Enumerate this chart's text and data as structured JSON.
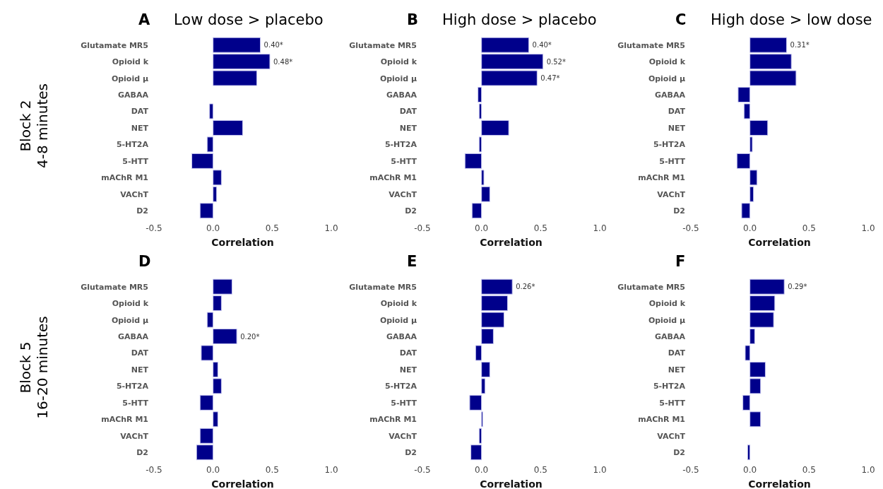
{
  "chart_data": [
    {
      "type": "bar",
      "orientation": "horizontal",
      "title": "A",
      "subtitle": "Low dose > placebo",
      "ylabel": "Block 2\n4-8 minutes",
      "xlabel": "Correlation",
      "categories": [
        "Glutamate MR5",
        "Opioid k",
        "Opioid μ",
        "GABAA",
        "DAT",
        "NET",
        "5-HT2A",
        "5-HTT",
        "mAChR M1",
        "VAChT",
        "D2"
      ],
      "values": [
        0.4,
        0.48,
        0.37,
        0,
        -0.03,
        0.25,
        -0.05,
        -0.18,
        0.07,
        0.03,
        -0.11
      ],
      "value_labels": [
        "0.40*",
        "0.48*",
        null,
        null,
        null,
        null,
        null,
        null,
        null,
        null,
        null
      ],
      "color": "#00008b",
      "xlim": [
        -0.5,
        1.0
      ],
      "xticks": [
        {
          "value": -0.5,
          "label": "-0.5"
        },
        {
          "value": 0,
          "label": "0.0"
        },
        {
          "value": 0.5,
          "label": "0.5"
        },
        {
          "value": 1,
          "label": "1.0"
        }
      ]
    },
    {
      "type": "bar",
      "orientation": "horizontal",
      "title": "B",
      "subtitle": "High dose > placebo",
      "xlabel": "Correlation",
      "categories": [
        "Glutamate MR5",
        "Opioid k",
        "Opioid μ",
        "GABAA",
        "DAT",
        "NET",
        "5-HT2A",
        "5-HTT",
        "mAChR M1",
        "VAChT",
        "D2"
      ],
      "values": [
        0.4,
        0.52,
        0.47,
        -0.03,
        -0.02,
        0.23,
        -0.02,
        -0.14,
        0.02,
        0.07,
        -0.08
      ],
      "value_labels": [
        "0.40*",
        "0.52*",
        "0.47*",
        null,
        null,
        null,
        null,
        null,
        null,
        null,
        null
      ],
      "color": "#00008b",
      "xlim": [
        -0.5,
        1.0
      ],
      "xticks": [
        {
          "value": -0.5,
          "label": "-0.5"
        },
        {
          "value": 0,
          "label": "0.0"
        },
        {
          "value": 0.5,
          "label": "0.5"
        },
        {
          "value": 1,
          "label": "1.0"
        }
      ]
    },
    {
      "type": "bar",
      "orientation": "horizontal",
      "title": "C",
      "subtitle": "High dose > low dose",
      "xlabel": "Correlation",
      "categories": [
        "Glutamate MR5",
        "Opioid k",
        "Opioid μ",
        "GABAA",
        "DAT",
        "NET",
        "5-HT2A",
        "5-HTT",
        "mAChR M1",
        "VAChT",
        "D2"
      ],
      "values": [
        0.31,
        0.35,
        0.39,
        -0.1,
        -0.05,
        0.15,
        0.02,
        -0.11,
        0.06,
        0.03,
        -0.07
      ],
      "value_labels": [
        "0.31*",
        null,
        null,
        null,
        null,
        null,
        null,
        null,
        null,
        null,
        null
      ],
      "color": "#00008b",
      "xlim": [
        -0.5,
        1.0
      ],
      "xticks": [
        {
          "value": -0.5,
          "label": "-0.5"
        },
        {
          "value": 0,
          "label": "0.0"
        },
        {
          "value": 0.5,
          "label": "0.5"
        },
        {
          "value": 1,
          "label": "1.0"
        }
      ]
    },
    {
      "type": "bar",
      "orientation": "horizontal",
      "title": "D",
      "ylabel": "Block 5\n16-20 minutes",
      "xlabel": "Correlation",
      "categories": [
        "Glutamate MR5",
        "Opioid k",
        "Opioid μ",
        "GABAA",
        "DAT",
        "NET",
        "5-HT2A",
        "5-HTT",
        "mAChR M1",
        "VAChT",
        "D2"
      ],
      "values": [
        0.16,
        0.07,
        -0.05,
        0.2,
        -0.1,
        0.04,
        0.07,
        -0.11,
        0.04,
        -0.11,
        -0.14
      ],
      "value_labels": [
        null,
        null,
        null,
        "0.20*",
        null,
        null,
        null,
        null,
        null,
        null,
        null
      ],
      "color": "#00008b",
      "xlim": [
        -0.5,
        1.0
      ],
      "xticks": [
        {
          "value": -0.5,
          "label": "-0.5"
        },
        {
          "value": 0,
          "label": "0.0"
        },
        {
          "value": 0.5,
          "label": "0.5"
        },
        {
          "value": 1,
          "label": "1.0"
        }
      ]
    },
    {
      "type": "bar",
      "orientation": "horizontal",
      "title": "E",
      "xlabel": "Correlation",
      "categories": [
        "Glutamate MR5",
        "Opioid k",
        "Opioid μ",
        "GABAA",
        "DAT",
        "NET",
        "5-HT2A",
        "5-HTT",
        "mAChR M1",
        "VAChT",
        "D2"
      ],
      "values": [
        0.26,
        0.22,
        0.19,
        0.1,
        -0.05,
        0.07,
        0.03,
        -0.1,
        0.01,
        -0.02,
        -0.09
      ],
      "value_labels": [
        "0.26*",
        null,
        null,
        null,
        null,
        null,
        null,
        null,
        null,
        null,
        null
      ],
      "color": "#00008b",
      "xlim": [
        -0.5,
        1.0
      ],
      "xticks": [
        {
          "value": -0.5,
          "label": "-0.5"
        },
        {
          "value": 0,
          "label": "0.0"
        },
        {
          "value": 0.5,
          "label": "0.5"
        },
        {
          "value": 1,
          "label": "1.0"
        }
      ]
    },
    {
      "type": "bar",
      "orientation": "horizontal",
      "title": "F",
      "xlabel": "Correlation",
      "categories": [
        "Glutamate MR5",
        "Opioid k",
        "Opioid μ",
        "GABAA",
        "DAT",
        "NET",
        "5-HT2A",
        "5-HTT",
        "mAChR M1",
        "VAChT",
        "D2"
      ],
      "values": [
        0.29,
        0.21,
        0.2,
        0.04,
        -0.04,
        0.13,
        0.09,
        -0.06,
        0.09,
        0,
        -0.02
      ],
      "value_labels": [
        "0.29*",
        null,
        null,
        null,
        null,
        null,
        null,
        null,
        null,
        null,
        null
      ],
      "color": "#00008b",
      "xlim": [
        -0.5,
        1.0
      ],
      "xticks": [
        {
          "value": -0.5,
          "label": "-0.5"
        },
        {
          "value": 0,
          "label": "0.0"
        },
        {
          "value": 0.5,
          "label": "0.5"
        },
        {
          "value": 1,
          "label": "1.0"
        }
      ]
    }
  ]
}
